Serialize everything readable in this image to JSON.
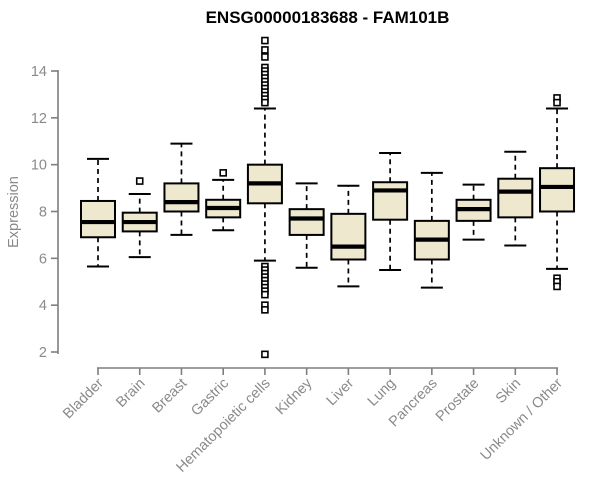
{
  "chart_data": {
    "type": "boxplot",
    "title": "ENSG00000183688 - FAM101B",
    "ylabel": "Expression",
    "xlabel": "",
    "ylim": [
      2,
      14
    ],
    "yticks": [
      2,
      4,
      6,
      8,
      10,
      12,
      14
    ],
    "grid": false,
    "legend": false,
    "x_label_rotation_deg": 45,
    "categories": [
      "Bladder",
      "Brain",
      "Breast",
      "Gastric",
      "Hematopoietic cells",
      "Kidney",
      "Liver",
      "Lung",
      "Pancreas",
      "Prostate",
      "Skin",
      "Unknown / Other"
    ],
    "series": [
      {
        "name": "Bladder",
        "whisker_low": 5.65,
        "q1": 6.9,
        "median": 7.55,
        "q3": 8.45,
        "whisker_high": 10.25,
        "outliers": []
      },
      {
        "name": "Brain",
        "whisker_low": 6.05,
        "q1": 7.15,
        "median": 7.55,
        "q3": 7.95,
        "whisker_high": 8.75,
        "outliers": [
          9.3
        ]
      },
      {
        "name": "Breast",
        "whisker_low": 7.0,
        "q1": 8.0,
        "median": 8.4,
        "q3": 9.2,
        "whisker_high": 10.9,
        "outliers": []
      },
      {
        "name": "Gastric",
        "whisker_low": 7.2,
        "q1": 7.75,
        "median": 8.15,
        "q3": 8.5,
        "whisker_high": 9.35,
        "outliers": [
          9.65
        ]
      },
      {
        "name": "Hematopoietic cells",
        "whisker_low": 5.9,
        "q1": 8.35,
        "median": 9.2,
        "q3": 10.0,
        "whisker_high": 12.4,
        "outliers": [
          15.3,
          14.9,
          14.6,
          14.15,
          14.0,
          13.85,
          13.7,
          13.55,
          13.4,
          13.25,
          13.1,
          12.95,
          12.8,
          12.65,
          5.65,
          5.5,
          5.35,
          5.2,
          5.05,
          4.9,
          4.75,
          4.6,
          4.45,
          4.0,
          3.8,
          1.9
        ]
      },
      {
        "name": "Kidney",
        "whisker_low": 5.6,
        "q1": 7.0,
        "median": 7.7,
        "q3": 8.1,
        "whisker_high": 9.2,
        "outliers": []
      },
      {
        "name": "Liver",
        "whisker_low": 4.8,
        "q1": 5.95,
        "median": 6.5,
        "q3": 7.9,
        "whisker_high": 9.1,
        "outliers": []
      },
      {
        "name": "Lung",
        "whisker_low": 5.5,
        "q1": 7.65,
        "median": 8.9,
        "q3": 9.25,
        "whisker_high": 10.5,
        "outliers": []
      },
      {
        "name": "Pancreas",
        "whisker_low": 4.75,
        "q1": 5.95,
        "median": 6.8,
        "q3": 7.6,
        "whisker_high": 9.65,
        "outliers": []
      },
      {
        "name": "Prostate",
        "whisker_low": 6.8,
        "q1": 7.6,
        "median": 8.1,
        "q3": 8.5,
        "whisker_high": 9.15,
        "outliers": []
      },
      {
        "name": "Skin",
        "whisker_low": 6.55,
        "q1": 7.75,
        "median": 8.85,
        "q3": 9.4,
        "whisker_high": 10.55,
        "outliers": []
      },
      {
        "name": "Unknown / Other",
        "whisker_low": 5.55,
        "q1": 8.0,
        "median": 9.05,
        "q3": 9.85,
        "whisker_high": 12.4,
        "outliers": [
          12.85,
          12.65,
          5.15,
          5.0,
          4.8
        ]
      }
    ],
    "colors": {
      "box_fill": "#ede8ce",
      "box_border": "#000000",
      "whisker": "#000000",
      "outlier_fill": "#ffffff",
      "axis_line": "#7f7f7f",
      "axis_text": "#8a8a8a",
      "title_text": "#000000",
      "background": "#ffffff"
    }
  }
}
